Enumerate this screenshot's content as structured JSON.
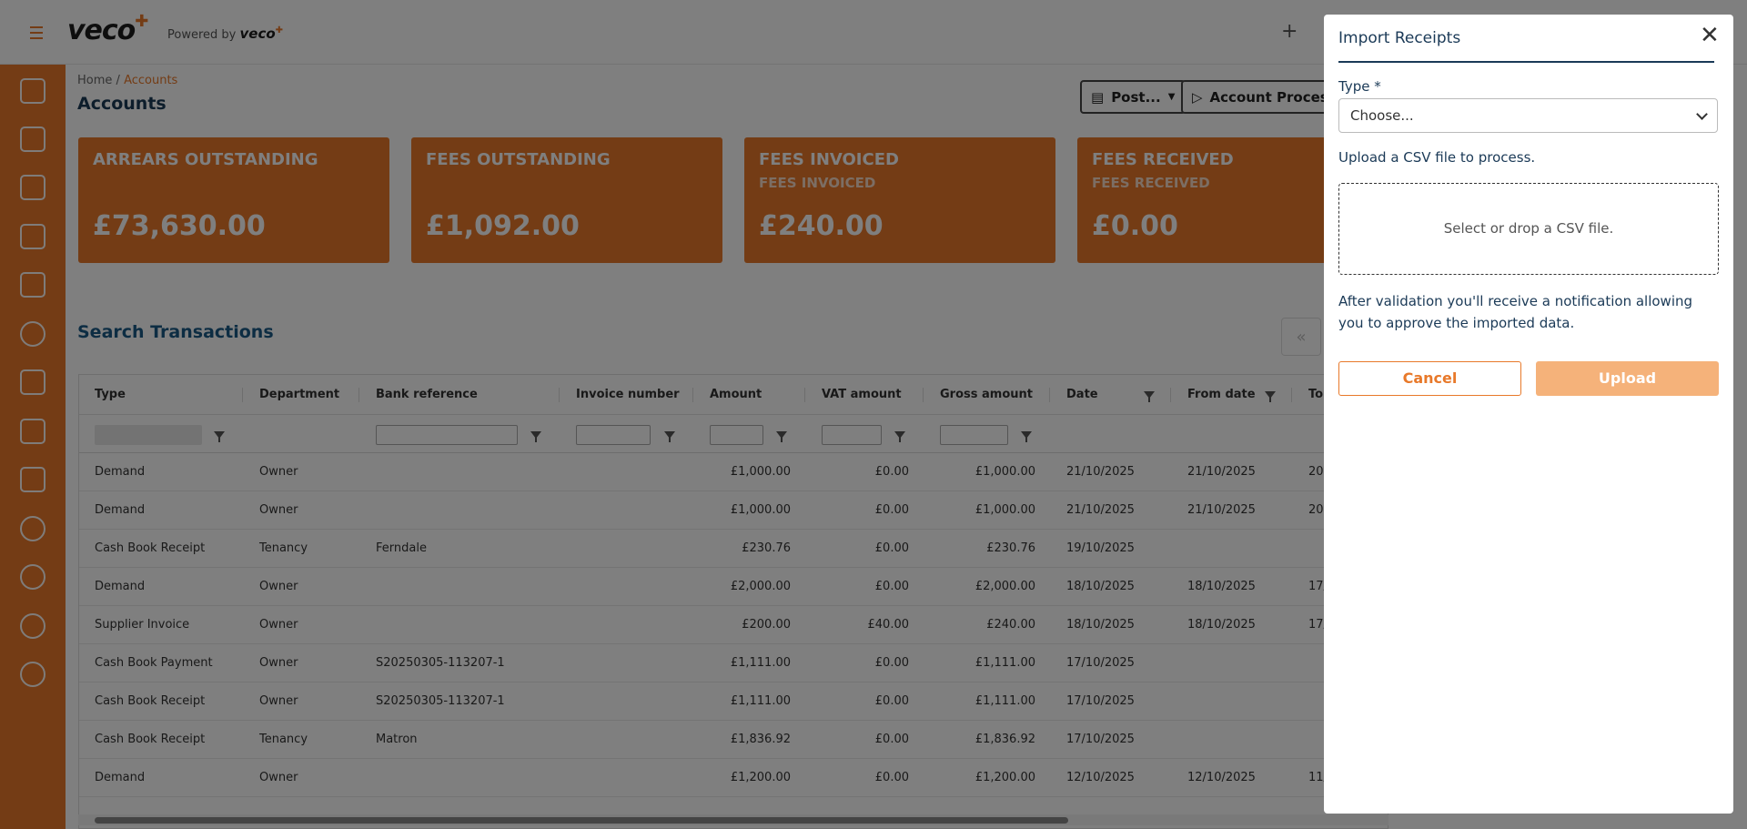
{
  "header": {
    "logo_text": "veco",
    "powered_prefix": "Powered by",
    "powered_brand": "veco",
    "plus_label": "+"
  },
  "sidebar": {
    "items": [
      "checklist-icon",
      "calendar-icon",
      "building-icon",
      "home-icon",
      "list-icon",
      "chat-icon",
      "tools-icon",
      "download-tray-icon",
      "contact-card-icon",
      "person-icon",
      "rocket-icon",
      "pound-icon",
      "gear-icon"
    ]
  },
  "breadcrumb": {
    "home": "Home",
    "separator": "/",
    "current": "Accounts"
  },
  "page": {
    "title": "Accounts"
  },
  "toolbar": {
    "post_label": "Post...",
    "account_process_label": "Account Process"
  },
  "cards": [
    {
      "title": "ARREARS OUTSTANDING",
      "subtitle": "",
      "value": "£73,630.00"
    },
    {
      "title": "FEES OUTSTANDING",
      "subtitle": "",
      "value": "£1,092.00"
    },
    {
      "title": "FEES INVOICED",
      "subtitle": "FEES INVOICED",
      "value": "£240.00"
    },
    {
      "title": "FEES RECEIVED",
      "subtitle": "FEES RECEIVED",
      "value": "£0.00"
    }
  ],
  "search": {
    "title": "Search Transactions",
    "first_page_icon": "«"
  },
  "table": {
    "columns": [
      "Type",
      "Department",
      "Bank reference",
      "Invoice number",
      "Amount",
      "VAT amount",
      "Gross amount",
      "Date",
      "From date",
      "To"
    ],
    "rows": [
      [
        "Demand",
        "Owner",
        "",
        "",
        "£1,000.00",
        "£0.00",
        "£1,000.00",
        "21/10/2025",
        "21/10/2025",
        "20"
      ],
      [
        "Demand",
        "Owner",
        "",
        "",
        "£1,000.00",
        "£0.00",
        "£1,000.00",
        "21/10/2025",
        "21/10/2025",
        "20"
      ],
      [
        "Cash Book Receipt",
        "Tenancy",
        "Ferndale",
        "",
        "£230.76",
        "£0.00",
        "£230.76",
        "19/10/2025",
        "",
        ""
      ],
      [
        "Demand",
        "Owner",
        "",
        "",
        "£2,000.00",
        "£0.00",
        "£2,000.00",
        "18/10/2025",
        "18/10/2025",
        "17/"
      ],
      [
        "Supplier Invoice",
        "Owner",
        "",
        "",
        "£200.00",
        "£40.00",
        "£240.00",
        "18/10/2025",
        "18/10/2025",
        "17/"
      ],
      [
        "Cash Book Payment",
        "Owner",
        "S20250305-113207-1",
        "",
        "£1,111.00",
        "£0.00",
        "£1,111.00",
        "17/10/2025",
        "",
        ""
      ],
      [
        "Cash Book Receipt",
        "Owner",
        "S20250305-113207-1",
        "",
        "£1,111.00",
        "£0.00",
        "£1,111.00",
        "17/10/2025",
        "",
        ""
      ],
      [
        "Cash Book Receipt",
        "Tenancy",
        "Matron",
        "",
        "£1,836.92",
        "£0.00",
        "£1,836.92",
        "17/10/2025",
        "",
        ""
      ],
      [
        "Demand",
        "Owner",
        "",
        "",
        "£1,200.00",
        "£0.00",
        "£1,200.00",
        "12/10/2025",
        "12/10/2025",
        "11/"
      ]
    ]
  },
  "dialog": {
    "title": "Import Receipts",
    "close_glyph": "✕",
    "type_label": "Type *",
    "type_value": "Choose...",
    "upload_label": "Upload a CSV file to process.",
    "drop_text": "Select or drop a CSV file.",
    "note": "After validation you'll receive a notification allowing you to approve the imported data.",
    "cancel_label": "Cancel",
    "upload_button_label": "Upload"
  },
  "colors": {
    "brand": "#e8792a",
    "navy": "#1b3a57",
    "upload_disabled": "#f5b27a"
  }
}
